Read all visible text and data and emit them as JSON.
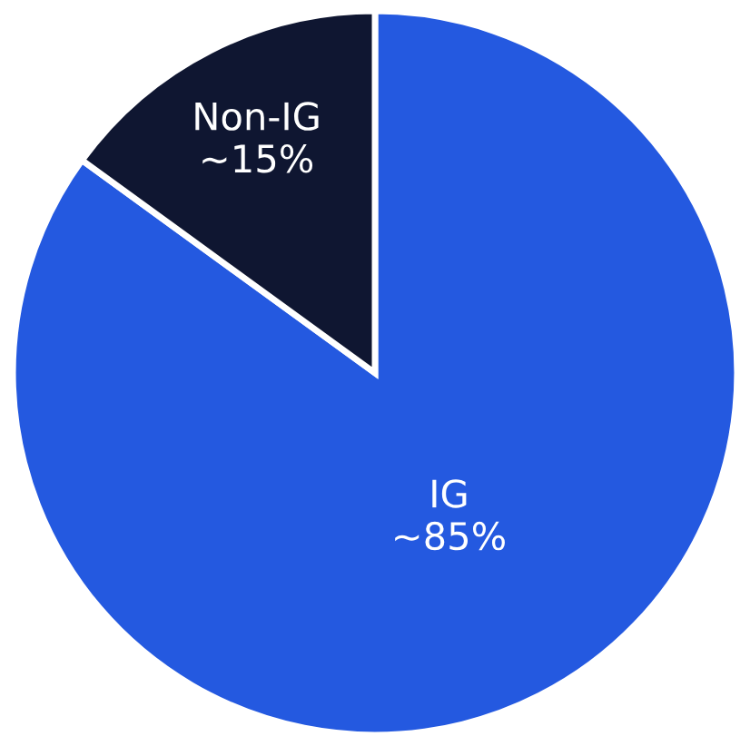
{
  "chart_data": {
    "type": "pie",
    "categories": [
      "IG",
      "Non-IG"
    ],
    "values": [
      85,
      15
    ],
    "value_labels": [
      "~85%",
      "~15%"
    ],
    "colors": [
      "#2459e0",
      "#0f1631"
    ]
  }
}
